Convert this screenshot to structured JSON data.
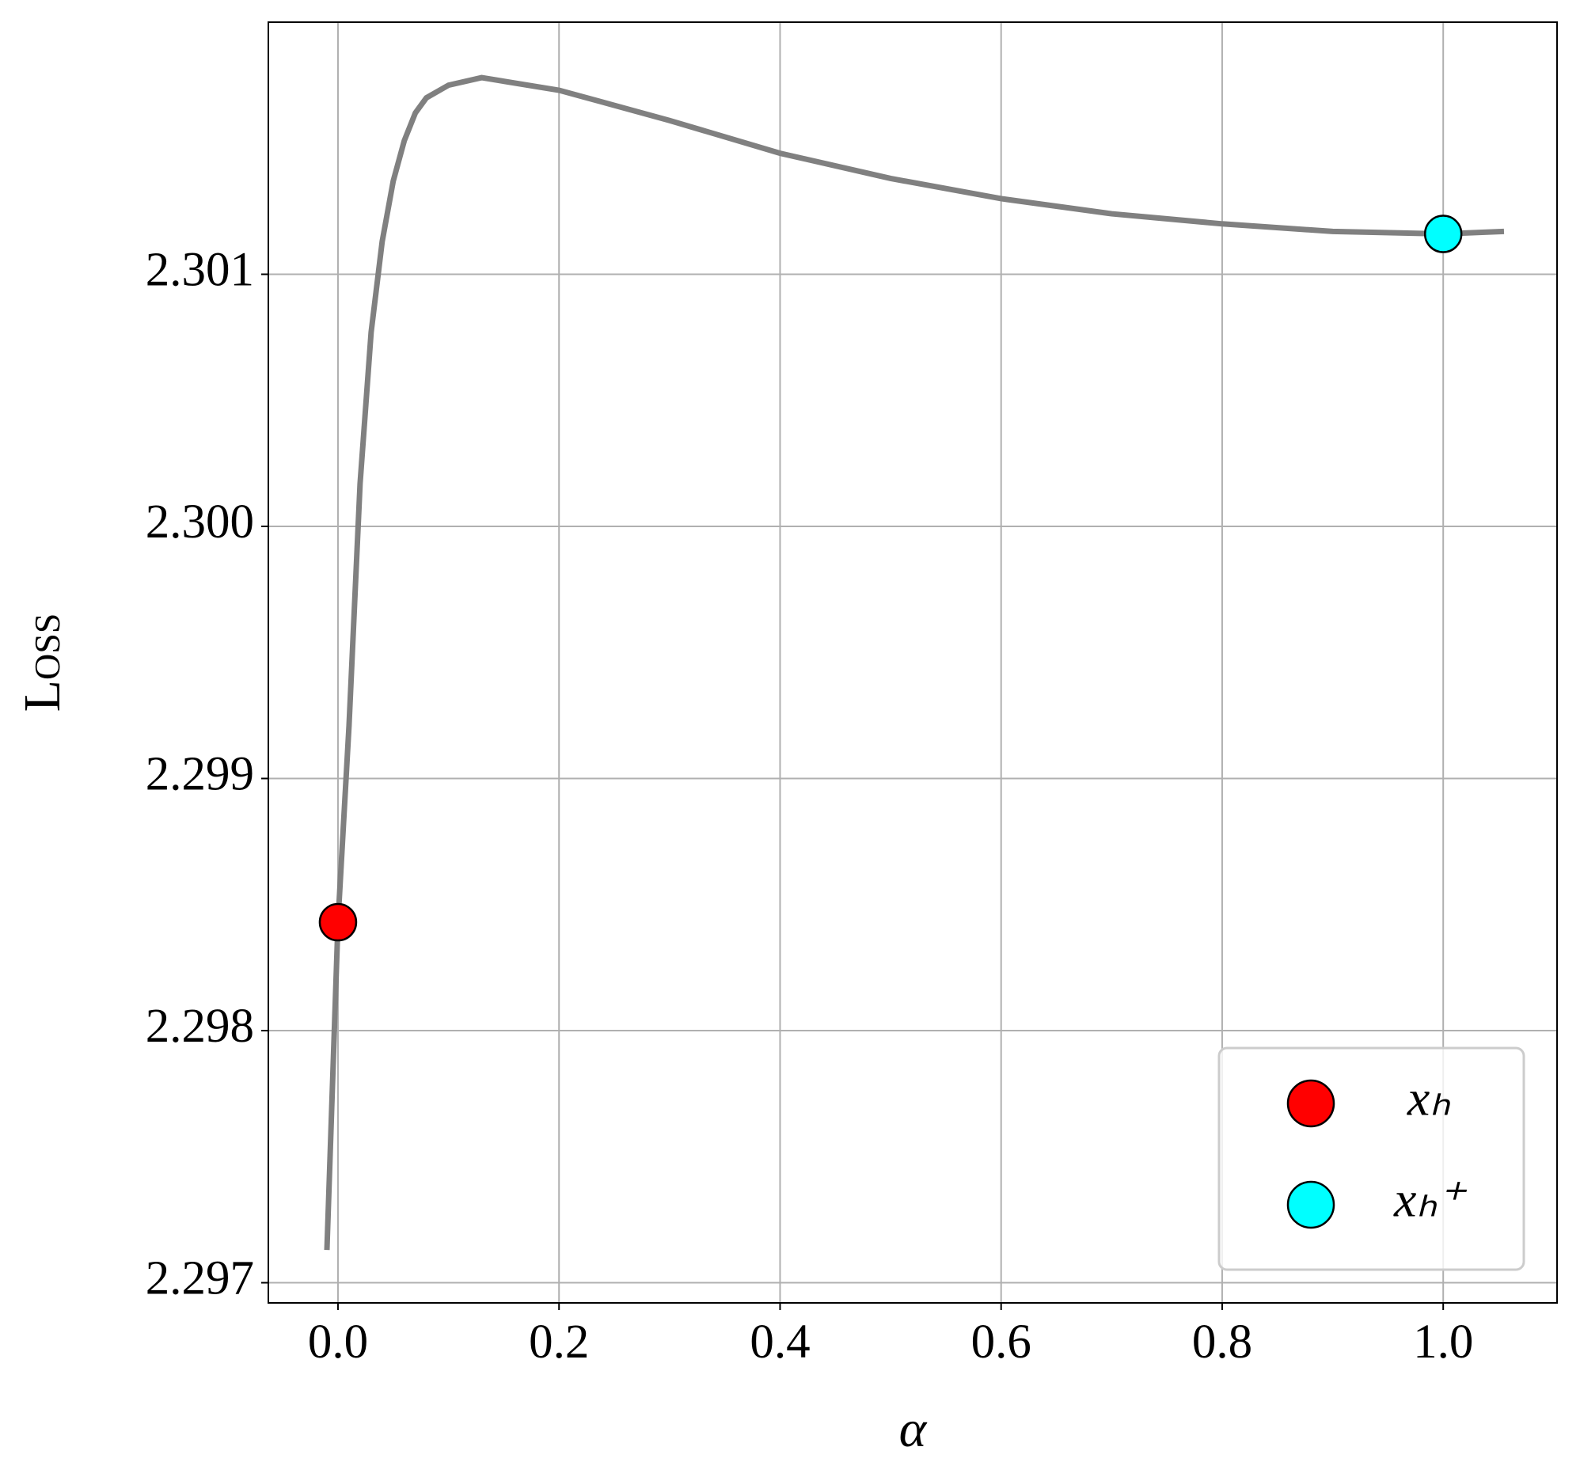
{
  "chart_data": {
    "type": "line",
    "xlabel": "α",
    "ylabel": "Loss",
    "xlim": [
      -0.063,
      1.103
    ],
    "ylim": [
      2.29692,
      2.302
    ],
    "xticks": [
      {
        "value": 0,
        "label": "0.0"
      },
      0.2,
      0.4,
      0.6,
      0.8,
      {
        "value": 1,
        "label": "1.0"
      }
    ],
    "yticks": [
      2.297,
      2.298,
      2.299,
      {
        "value": 2.3,
        "label": "2.300"
      },
      2.301
    ],
    "grid": true,
    "legend": "lower right",
    "curve": {
      "color": "#808080",
      "x": [
        -0.01,
        0,
        0.01,
        0.02,
        0.03,
        0.04,
        0.05,
        0.06,
        0.07,
        0.08,
        0.1,
        0.13,
        0.2,
        0.3,
        0.4,
        0.5,
        0.6,
        0.7,
        0.8,
        0.9,
        1.0,
        1.055
      ],
      "y": [
        2.29713,
        2.29843,
        2.29921,
        2.30017,
        2.30077,
        2.30113,
        2.30137,
        2.30153,
        2.30164,
        2.3017,
        2.30175,
        2.30178,
        2.30173,
        2.30161,
        2.30148,
        2.30138,
        2.3013,
        2.30124,
        2.3012,
        2.30117,
        2.30116,
        2.30117
      ]
    },
    "points": [
      {
        "name": "xₕ",
        "color": "#ff0000",
        "x": 0,
        "y": 2.29843
      },
      {
        "name": "xₕ⁺",
        "color": "#00ffff",
        "x": 1.0,
        "y": 2.30116
      }
    ]
  }
}
